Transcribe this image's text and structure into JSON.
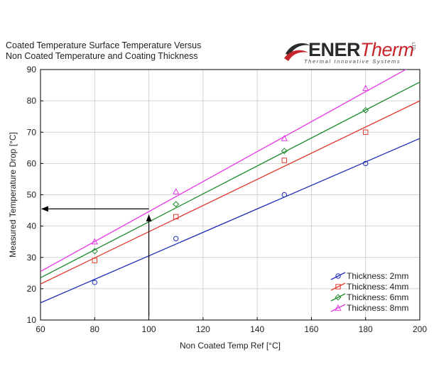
{
  "title_line1": "Coated Temperature Surface Temperature Versus",
  "title_line2": "Non Coated Temperature and Coating Thickness",
  "logo": {
    "brand_part1": "ENER",
    "brand_part2": "Therm",
    "tagline": "Thermal Innovative Systems",
    "mark": "LTD"
  },
  "colors": {
    "2mm": "#1f2fb5",
    "4mm": "#e03a2f",
    "6mm": "#1a8a2a",
    "8mm": "#e636e6"
  },
  "chart_data": {
    "type": "scatter",
    "xlabel": "Non Coated Temp Ref [°C]",
    "ylabel": "Measured Temperature Drop [°C]",
    "xlim": [
      60,
      200
    ],
    "ylim": [
      10,
      90
    ],
    "x_ticks": [
      60,
      80,
      100,
      120,
      140,
      160,
      180,
      200
    ],
    "y_ticks": [
      10,
      20,
      30,
      40,
      50,
      60,
      70,
      80,
      90
    ],
    "grid": true,
    "legend_position": "bottom-right",
    "series": [
      {
        "name": "Thickness: 2mm",
        "key": "2mm",
        "marker": "circle",
        "x": [
          80,
          110,
          150,
          180
        ],
        "y": [
          22,
          36,
          50,
          60
        ],
        "fit": {
          "x": [
            60,
            200
          ],
          "y": [
            15.5,
            68
          ]
        }
      },
      {
        "name": "Thickness: 4mm",
        "key": "4mm",
        "marker": "square",
        "x": [
          80,
          110,
          150,
          180
        ],
        "y": [
          29,
          43,
          61,
          70
        ],
        "fit": {
          "x": [
            60,
            200
          ],
          "y": [
            21.5,
            80
          ]
        }
      },
      {
        "name": "Thickness: 6mm",
        "key": "6mm",
        "marker": "diamond",
        "x": [
          80,
          110,
          150,
          180
        ],
        "y": [
          32,
          47,
          64,
          77
        ],
        "fit": {
          "x": [
            60,
            200
          ],
          "y": [
            23.5,
            86
          ]
        }
      },
      {
        "name": "Thickness: 8mm",
        "key": "8mm",
        "marker": "triangle",
        "x": [
          80,
          110,
          150,
          180
        ],
        "y": [
          35,
          51,
          68,
          84
        ],
        "fit": {
          "x": [
            60,
            200
          ],
          "y": [
            25.5,
            92.5
          ]
        }
      }
    ],
    "annotation_arrows": [
      {
        "from": [
          100,
          11
        ],
        "to": [
          100,
          43.5
        ]
      },
      {
        "from": [
          100,
          45.5
        ],
        "to": [
          60.5,
          45.5
        ]
      }
    ]
  }
}
